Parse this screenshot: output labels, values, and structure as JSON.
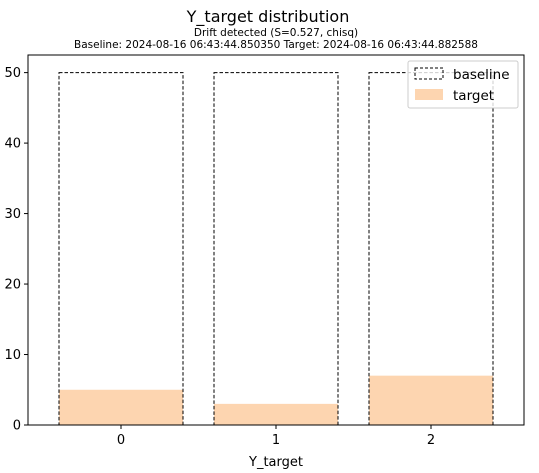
{
  "chart_data": {
    "type": "bar",
    "title": "Y_target distribution",
    "subtitle_lines": [
      "Drift detected (S=0.527, chisq)",
      "Baseline: 2024-08-16 06:43:44.850350 Target: 2024-08-16 06:43:44.882588"
    ],
    "xlabel": "Y_target",
    "ylabel": "",
    "categories": [
      "0",
      "1",
      "2"
    ],
    "series": [
      {
        "name": "baseline",
        "values": [
          50,
          50,
          50
        ],
        "style": "dashed-outline",
        "color": "#000000"
      },
      {
        "name": "target",
        "values": [
          5,
          3,
          7
        ],
        "style": "filled",
        "color": "#fdd5b0"
      }
    ],
    "ylim": [
      0,
      52.5
    ],
    "yticks": [
      0,
      10,
      20,
      30,
      40,
      50
    ],
    "grid": false,
    "legend": "top-right"
  }
}
